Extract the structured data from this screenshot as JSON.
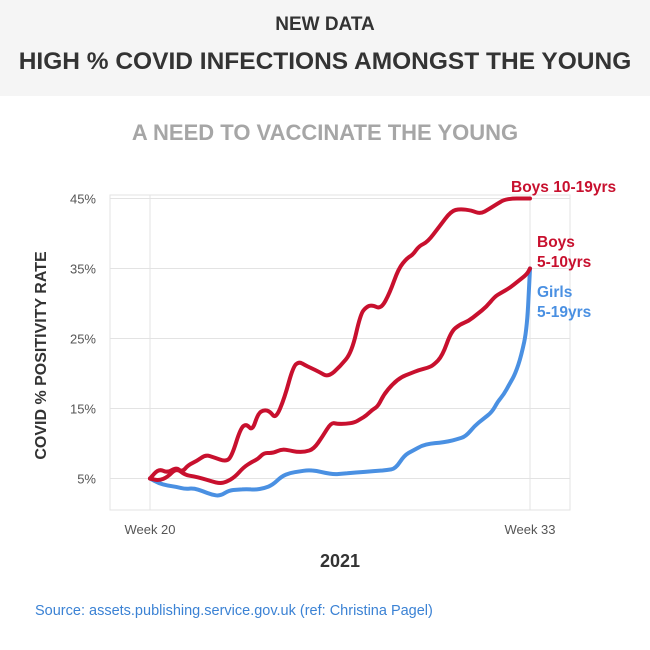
{
  "header": {
    "kicker": "NEW DATA",
    "headline": "HIGH % COVID INFECTIONS AMONGST THE YOUNG"
  },
  "subtitle": "A NEED TO VACCINATE THE YOUNG",
  "source": "Source: assets.publishing.service.gov.uk (ref: Christina Pagel)",
  "colors": {
    "boys_red": "#c8102e",
    "girls_blue": "#4a90e2",
    "grid": "#e3e3e3",
    "header_bg": "#f5f5f5",
    "subtitle_gray": "#a6a6a6",
    "source_blue": "#3b82d4"
  },
  "chart_data": {
    "type": "line",
    "title": "A NEED TO VACCINATE THE YOUNG",
    "xlabel": "2021",
    "ylabel": "COVID % POSITIVITY RATE",
    "xlim": [
      20,
      33
    ],
    "ylim": [
      0.5,
      45.5
    ],
    "x_ticks": [
      {
        "value": 20,
        "label": "Week 20"
      },
      {
        "value": 33,
        "label": "Week 33"
      }
    ],
    "y_ticks": [
      {
        "value": 5,
        "label": "5%"
      },
      {
        "value": 15,
        "label": "15%"
      },
      {
        "value": 25,
        "label": "25%"
      },
      {
        "value": 35,
        "label": "35%"
      },
      {
        "value": 45,
        "label": "45%"
      }
    ],
    "grid": true,
    "series": [
      {
        "name": "Boys 10-19yrs",
        "label_lines": [
          "Boys 10-19yrs"
        ],
        "color": "#c8102e",
        "x": [
          20,
          20.3,
          20.6,
          20.9,
          21.1,
          21.3,
          21.6,
          21.9,
          22.2,
          22.6,
          22.8,
          23.1,
          23.3,
          23.5,
          23.7,
          23.9,
          24.1,
          24.3,
          24.6,
          24.9,
          25.1,
          25.3,
          25.5,
          25.8,
          26.1,
          26.5,
          26.9,
          27.2,
          27.4,
          27.6,
          27.9,
          28.2,
          28.5,
          28.8,
          29.0,
          29.2,
          29.5,
          29.9,
          30.3,
          30.6,
          31.0,
          31.3,
          31.6,
          31.9,
          32.1,
          32.4,
          32.7,
          32.9,
          33.0
        ],
        "y": [
          5.0,
          6.4,
          5.8,
          6.6,
          5.9,
          6.9,
          7.5,
          8.4,
          8.0,
          7.4,
          8.2,
          12.2,
          12.8,
          11.8,
          14.3,
          14.8,
          14.6,
          13.5,
          16.5,
          21.0,
          21.7,
          21.2,
          20.8,
          20.2,
          19.5,
          21.0,
          23.0,
          28.5,
          29.5,
          29.8,
          29.2,
          31.5,
          35.0,
          36.5,
          37.0,
          38.2,
          38.8,
          41.0,
          43.2,
          43.5,
          43.3,
          42.8,
          43.5,
          44.3,
          44.8,
          45.0,
          45.0,
          45.0,
          45.0
        ]
      },
      {
        "name": "Boys 5-10yrs",
        "label_lines": [
          "Boys",
          "5-10yrs"
        ],
        "color": "#c8102e",
        "x": [
          20,
          20.3,
          20.6,
          20.9,
          21.2,
          21.5,
          21.8,
          22.1,
          22.4,
          22.6,
          22.9,
          23.2,
          23.5,
          23.7,
          23.9,
          24.2,
          24.5,
          24.8,
          25.0,
          25.3,
          25.6,
          25.9,
          26.2,
          26.4,
          26.7,
          27.0,
          27.2,
          27.4,
          27.6,
          27.8,
          28.0,
          28.3,
          28.6,
          28.9,
          29.2,
          29.5,
          29.7,
          30.0,
          30.3,
          30.6,
          30.9,
          31.2,
          31.5,
          31.8,
          32.0,
          32.3,
          32.6,
          32.9,
          33.0
        ],
        "y": [
          5.0,
          4.7,
          5.2,
          6.5,
          5.5,
          5.3,
          5.0,
          4.6,
          4.3,
          4.5,
          5.2,
          6.6,
          7.4,
          7.8,
          8.7,
          8.6,
          9.2,
          9.0,
          8.8,
          8.8,
          9.2,
          11.0,
          13.0,
          12.8,
          12.8,
          13.0,
          13.5,
          14.0,
          14.8,
          15.3,
          17.0,
          18.5,
          19.5,
          20.0,
          20.5,
          20.8,
          21.2,
          22.5,
          26.0,
          27.0,
          27.5,
          28.5,
          29.5,
          31.0,
          31.5,
          32.2,
          33.2,
          34.2,
          35.0
        ]
      },
      {
        "name": "Girls 5-19yrs",
        "label_lines": [
          "Girls",
          "5-19yrs"
        ],
        "color": "#4a90e2",
        "x": [
          20,
          20.3,
          20.6,
          20.9,
          21.2,
          21.5,
          21.8,
          22.1,
          22.4,
          22.7,
          23.0,
          23.3,
          23.6,
          23.9,
          24.2,
          24.5,
          24.8,
          25.1,
          25.4,
          25.7,
          26.0,
          26.3,
          26.6,
          26.9,
          27.2,
          27.5,
          27.8,
          28.1,
          28.4,
          28.7,
          29.0,
          29.3,
          29.6,
          29.9,
          30.2,
          30.5,
          30.8,
          31.1,
          31.4,
          31.7,
          31.9,
          32.1,
          32.3,
          32.5,
          32.7,
          32.9,
          33.0
        ],
        "y": [
          5.0,
          4.3,
          4.0,
          3.8,
          3.5,
          3.6,
          3.2,
          2.7,
          2.5,
          3.3,
          3.4,
          3.5,
          3.4,
          3.6,
          4.1,
          5.3,
          5.8,
          6.0,
          6.2,
          6.1,
          5.8,
          5.6,
          5.7,
          5.8,
          5.9,
          6.0,
          6.1,
          6.2,
          6.4,
          8.3,
          9.0,
          9.7,
          10.0,
          10.1,
          10.3,
          10.6,
          11.0,
          12.5,
          13.5,
          14.5,
          16.0,
          17.0,
          18.5,
          20.0,
          22.5,
          26.5,
          35.0
        ]
      }
    ]
  }
}
